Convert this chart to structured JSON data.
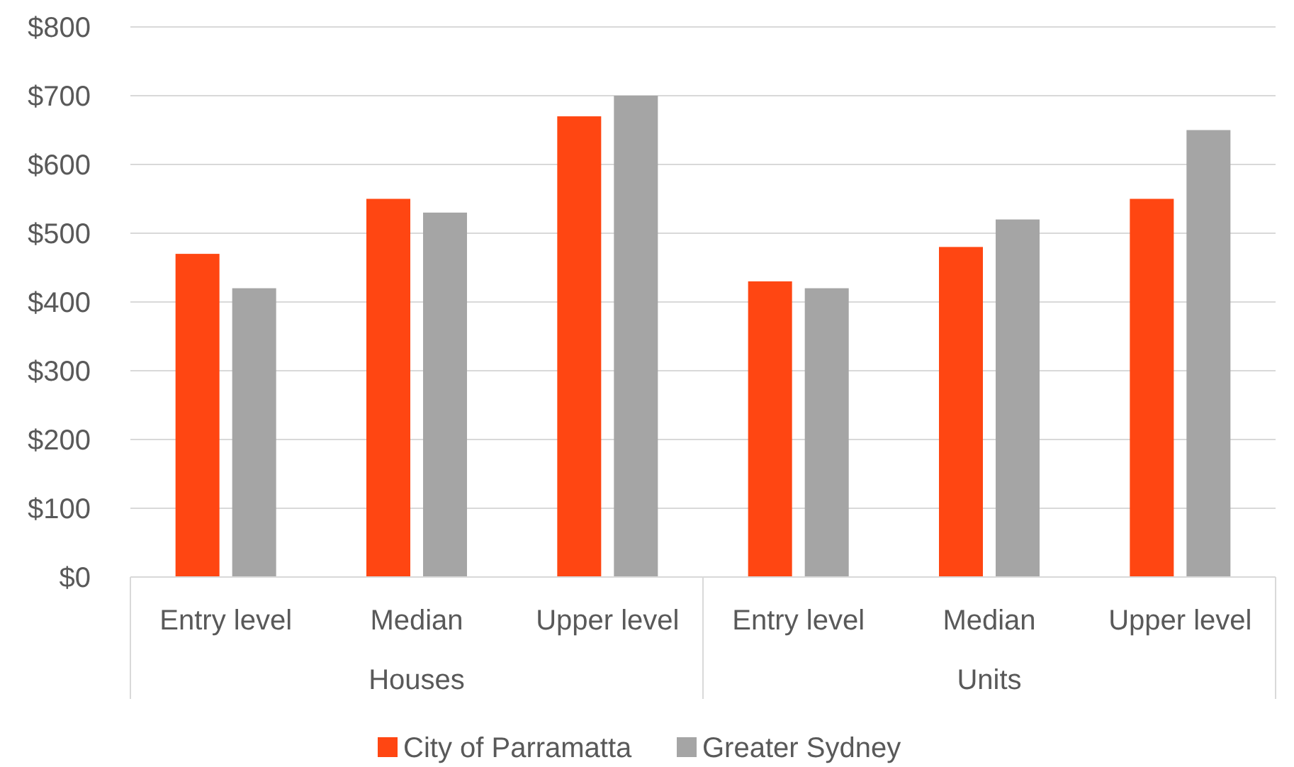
{
  "chart_data": {
    "type": "bar",
    "categories": [
      "Entry level",
      "Median",
      "Upper level",
      "Entry level",
      "Median",
      "Upper level"
    ],
    "series": [
      {
        "name": "City of Parramatta",
        "color": "#ff4612",
        "values": [
          470,
          550,
          670,
          430,
          480,
          550
        ]
      },
      {
        "name": "Greater Sydney",
        "color": "#a5a5a5",
        "values": [
          420,
          530,
          700,
          420,
          520,
          650
        ]
      }
    ],
    "ylim": [
      0,
      800
    ],
    "yticks": [
      {
        "value": 0,
        "label": "$0"
      },
      {
        "value": 100,
        "label": "$100"
      },
      {
        "value": 200,
        "label": "$200"
      },
      {
        "value": 300,
        "label": "$300"
      },
      {
        "value": 400,
        "label": "$400"
      },
      {
        "value": 500,
        "label": "$500"
      },
      {
        "value": 600,
        "label": "$600"
      },
      {
        "value": 700,
        "label": "$700"
      },
      {
        "value": 800,
        "label": "$800"
      }
    ],
    "annotations": [
      "Houses",
      "Units"
    ],
    "grid": "y",
    "legend": "bottom"
  }
}
